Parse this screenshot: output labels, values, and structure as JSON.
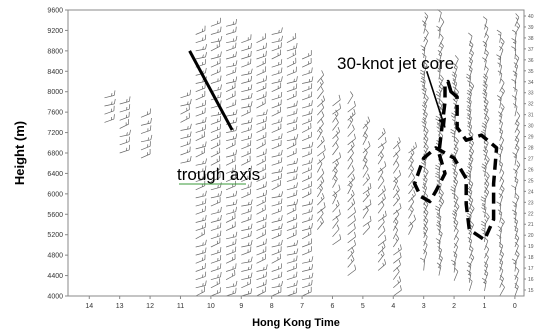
{
  "chart_data": {
    "type": "wind_profile",
    "xlabel": "Hong Kong Time",
    "ylabel": "Height (m)",
    "x_ticks": [
      "14",
      "13",
      "12",
      "11",
      "10",
      "9",
      "8",
      "7",
      "6",
      "5",
      "4",
      "3",
      "2",
      "1",
      "0"
    ],
    "x_reversed": true,
    "xlim": [
      14.7,
      -0.3
    ],
    "ylim": [
      4000,
      9600
    ],
    "y_ticks": [
      4000,
      4400,
      4800,
      5200,
      5600,
      6000,
      6400,
      6800,
      7200,
      7600,
      8000,
      8400,
      8800,
      9200,
      9600
    ],
    "right_ticks": [
      "40",
      "39",
      "38",
      "37",
      "36",
      "35",
      "34",
      "33",
      "32",
      "31",
      "30",
      "29",
      "28",
      "27",
      "26",
      "25",
      "24",
      "23",
      "22",
      "21",
      "20",
      "19",
      "18",
      "17",
      "16",
      "15"
    ],
    "annotations": [
      {
        "name": "trough-axis",
        "text": "trough axis",
        "line_from": [
          10.7,
          8800
        ],
        "line_to": [
          9.3,
          7250
        ]
      },
      {
        "name": "jet-core",
        "text": "30-knot jet core",
        "arrow_from": [
          2.9,
          8400
        ],
        "arrow_to": [
          2.3,
          7300
        ]
      }
    ],
    "jet_core_outline": [
      [
        2.1,
        8000
      ],
      [
        2.2,
        8200
      ],
      [
        2.3,
        8150
      ],
      [
        2.3,
        7800
      ],
      [
        2.4,
        7300
      ],
      [
        2.5,
        6800
      ],
      [
        2.3,
        6400
      ],
      [
        2.6,
        6050
      ],
      [
        2.8,
        5850
      ],
      [
        3.1,
        5950
      ],
      [
        3.3,
        6200
      ],
      [
        3.0,
        6700
      ],
      [
        2.6,
        6900
      ],
      [
        2.0,
        6700
      ],
      [
        1.6,
        6300
      ],
      [
        1.6,
        5800
      ],
      [
        1.5,
        5300
      ],
      [
        1.0,
        5100
      ],
      [
        0.7,
        5500
      ],
      [
        0.7,
        6200
      ],
      [
        0.6,
        6900
      ],
      [
        1.1,
        7150
      ],
      [
        1.6,
        7050
      ],
      [
        1.9,
        7300
      ],
      [
        1.9,
        7900
      ],
      [
        2.1,
        8000
      ]
    ],
    "barb_columns": [
      {
        "x": 13.5,
        "heights": [
          7400,
          8000
        ]
      },
      {
        "x": 13.0,
        "heights": [
          6800,
          7900
        ]
      },
      {
        "x": 12.3,
        "heights": [
          6700,
          7600
        ]
      },
      {
        "x": 11.0,
        "heights": [
          6600,
          7900
        ]
      },
      {
        "x": 10.5,
        "heights": [
          4000,
          9200
        ]
      },
      {
        "x": 10.0,
        "heights": [
          4000,
          9300
        ]
      },
      {
        "x": 9.5,
        "heights": [
          4000,
          9300
        ]
      },
      {
        "x": 9.0,
        "heights": [
          4000,
          9100
        ]
      },
      {
        "x": 8.5,
        "heights": [
          4000,
          9000
        ]
      },
      {
        "x": 8.0,
        "heights": [
          4000,
          9200
        ]
      },
      {
        "x": 7.5,
        "heights": [
          4000,
          9100
        ]
      },
      {
        "x": 7.0,
        "heights": [
          4000,
          8700
        ]
      },
      {
        "x": 6.5,
        "heights": [
          5300,
          8200
        ]
      },
      {
        "x": 6.0,
        "heights": [
          5000,
          7800
        ]
      },
      {
        "x": 5.5,
        "heights": [
          4400,
          7900
        ]
      },
      {
        "x": 5.0,
        "heights": [
          5200,
          7300
        ]
      },
      {
        "x": 4.5,
        "heights": [
          4500,
          7100
        ]
      },
      {
        "x": 4.0,
        "heights": [
          4000,
          7000
        ]
      },
      {
        "x": 3.5,
        "heights": [
          5200,
          6800
        ]
      },
      {
        "x": 3.0,
        "heights": [
          4500,
          9400
        ]
      },
      {
        "x": 2.5,
        "heights": [
          4400,
          9400
        ]
      },
      {
        "x": 2.0,
        "heights": [
          4300,
          8600
        ]
      },
      {
        "x": 1.5,
        "heights": [
          4100,
          8900
        ]
      },
      {
        "x": 1.0,
        "heights": [
          4100,
          9300
        ]
      },
      {
        "x": 0.5,
        "heights": [
          4000,
          9000
        ]
      },
      {
        "x": 0.0,
        "heights": [
          4000,
          9300
        ]
      }
    ],
    "barb_spacing_m": 160,
    "colors": {
      "barbs": "#666666",
      "axis": "#888888",
      "trough_line": "#000000",
      "trough_underline": "#3a9a3a"
    }
  }
}
